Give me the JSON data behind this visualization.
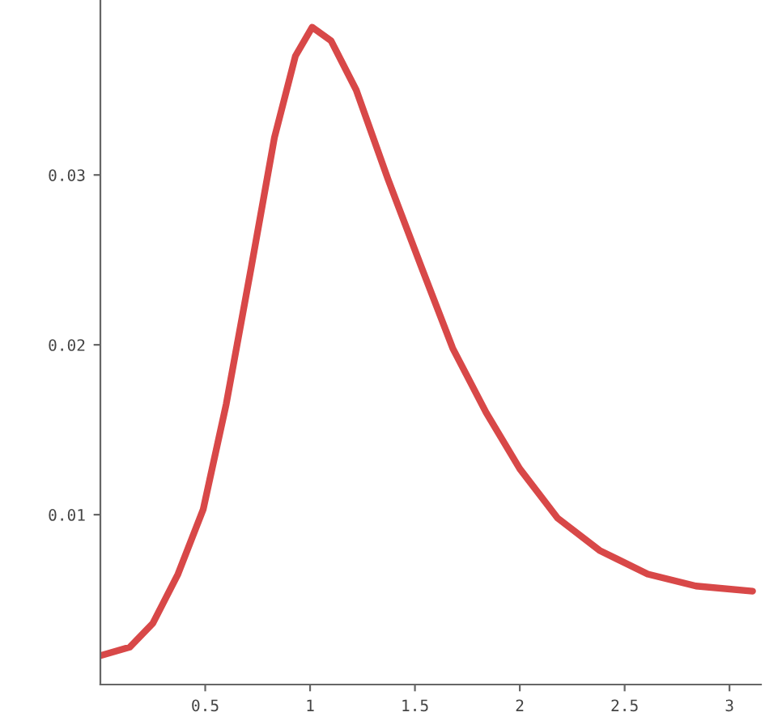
{
  "chart_data": {
    "type": "line",
    "color": "#d84848",
    "x": [
      0,
      0.14,
      0.25,
      0.37,
      0.49,
      0.6,
      0.72,
      0.83,
      0.93,
      1.01,
      1.1,
      1.22,
      1.37,
      1.53,
      1.68,
      1.84,
      2.0,
      2.18,
      2.38,
      2.61,
      2.84,
      3.11
    ],
    "values": [
      0.0017,
      0.0022,
      0.0036,
      0.0065,
      0.0103,
      0.0165,
      0.0246,
      0.0322,
      0.037,
      0.0387,
      0.0379,
      0.035,
      0.0298,
      0.0246,
      0.0198,
      0.016,
      0.0127,
      0.0098,
      0.0079,
      0.0065,
      0.0058,
      0.0055
    ],
    "xlim": [
      0,
      3.15
    ],
    "ylim": [
      0,
      0.0403
    ],
    "xticks": [
      0.5,
      1,
      1.5,
      2,
      2.5,
      3
    ],
    "yticks": [
      0.01,
      0.02,
      0.03
    ],
    "grid": false,
    "legend": false,
    "marker": "none",
    "line_style": "solid"
  }
}
